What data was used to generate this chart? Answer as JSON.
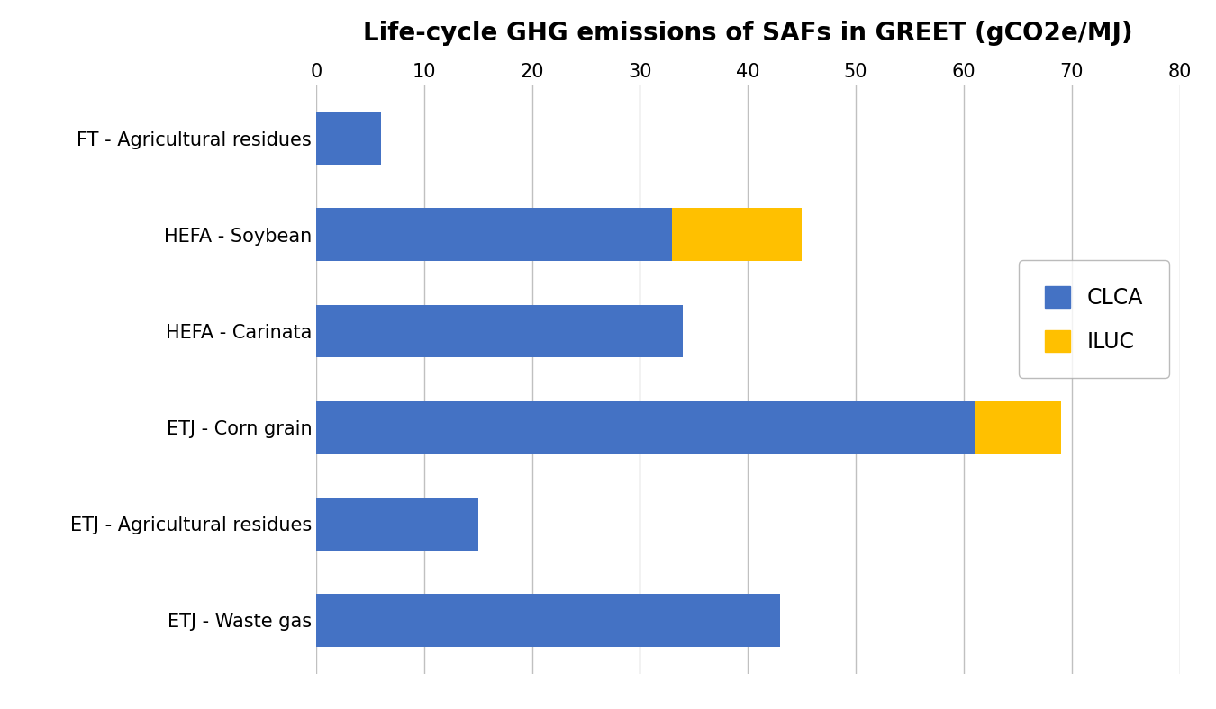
{
  "title": "Life-cycle GHG emissions of SAFs in GREET (gCO2e/MJ)",
  "categories": [
    "FT - Agricultural residues",
    "HEFA - Soybean",
    "HEFA - Carinata",
    "ETJ - Corn grain",
    "ETJ - Agricultural residues",
    "ETJ - Waste gas"
  ],
  "clca_values": [
    6.0,
    33.0,
    34.0,
    61.0,
    15.0,
    43.0
  ],
  "iluc_values": [
    0.0,
    12.0,
    0.0,
    8.0,
    0.0,
    0.0
  ],
  "clca_color": "#4472C4",
  "iluc_color": "#FFC000",
  "xlim": [
    0,
    80
  ],
  "xticks": [
    0,
    10,
    20,
    30,
    40,
    50,
    60,
    70,
    80
  ],
  "legend_labels": [
    "CLCA",
    "ILUC"
  ],
  "title_fontsize": 20,
  "tick_fontsize": 15,
  "label_fontsize": 15,
  "bar_height": 0.55,
  "background_color": "#FFFFFF",
  "grid_color": "#C0C0C0"
}
